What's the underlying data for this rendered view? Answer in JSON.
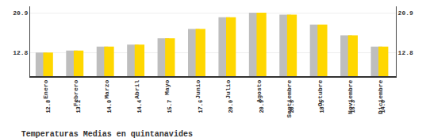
{
  "chart_data": {
    "type": "bar",
    "title": "Temperaturas Medias en quintanavides",
    "categories": [
      "Enero",
      "Febrero",
      "Marzo",
      "Abril",
      "Mayo",
      "Junio",
      "Julio",
      "Agosto",
      "Septiembre",
      "Octubre",
      "Noviembre",
      "Diciembre"
    ],
    "values": [
      12.8,
      13.2,
      14.0,
      14.4,
      15.7,
      17.6,
      20.0,
      20.9,
      20.5,
      18.5,
      16.3,
      14.0
    ],
    "value_labels": [
      "12.8",
      "13.2",
      "14.0",
      "14.4",
      "15.7",
      "17.6",
      "20.0",
      "20.9",
      "20.5",
      "18.5",
      "16.3",
      "14.0"
    ],
    "data_labels": true,
    "color": "#FFD700",
    "ylim": [
      8.0,
      22.2
    ],
    "yticks": [
      12.8,
      20.9
    ],
    "y2lim": [
      8.0,
      22.2
    ],
    "y2ticks": [
      12.8,
      20.9
    ],
    "grid": true
  }
}
